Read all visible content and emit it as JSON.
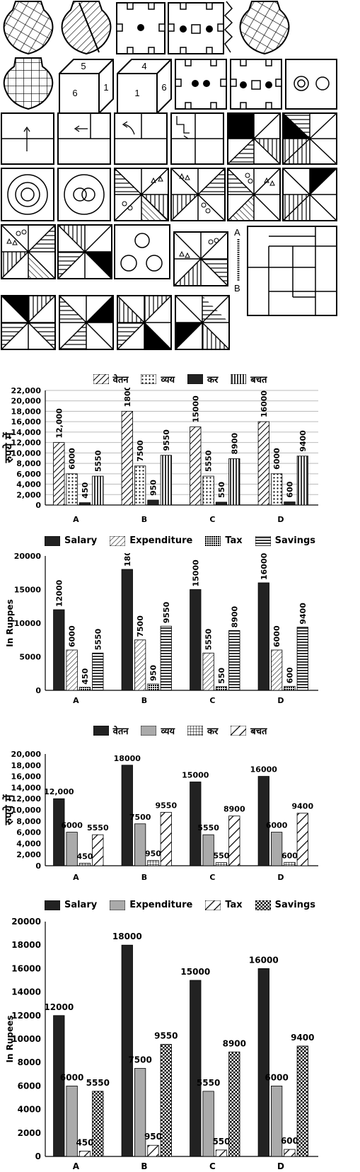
{
  "puzzle": {
    "labels": [
      "5",
      "1",
      "6",
      "4",
      "1",
      "6",
      "A",
      "B"
    ]
  },
  "chart_data": [
    {
      "type": "bar",
      "categories": [
        "A",
        "B",
        "C",
        "D"
      ],
      "ylabel": "रुपये में",
      "ylim": [
        0,
        22000
      ],
      "yticks": [
        "0",
        "2,000",
        "4,000",
        "6,000",
        "8,000",
        "10,000",
        "12,000",
        "14,000",
        "16,000",
        "18,000",
        "20,000",
        "22,000"
      ],
      "legend": "top",
      "grid": true,
      "series": [
        {
          "name": "वेतन",
          "values": [
            12000,
            18000,
            15000,
            16000
          ],
          "labels": [
            "12,000",
            "18000",
            "15000",
            "16000"
          ]
        },
        {
          "name": "व्यय",
          "values": [
            6000,
            7500,
            5550,
            6000
          ],
          "labels": [
            "6000",
            "7500",
            "5550",
            "6000"
          ]
        },
        {
          "name": "कर",
          "values": [
            450,
            950,
            550,
            600
          ],
          "labels": [
            "450",
            "950",
            "550",
            "600"
          ]
        },
        {
          "name": "बचत",
          "values": [
            5550,
            9550,
            8900,
            9400
          ],
          "labels": [
            "5550",
            "9550",
            "8900",
            "9400"
          ]
        }
      ]
    },
    {
      "type": "bar",
      "categories": [
        "A",
        "B",
        "C",
        "D"
      ],
      "ylabel": "In Ruppes",
      "ylim": [
        0,
        20000
      ],
      "yticks": [
        "0",
        "5000",
        "10000",
        "15000",
        "20000"
      ],
      "legend": "top",
      "grid": false,
      "series": [
        {
          "name": "Salary",
          "values": [
            12000,
            18000,
            15000,
            16000
          ],
          "labels": [
            "12000",
            "18000",
            "15000",
            "16000"
          ]
        },
        {
          "name": "Expenditure",
          "values": [
            6000,
            7500,
            5550,
            6000
          ],
          "labels": [
            "6000",
            "7500",
            "5550",
            "6000"
          ]
        },
        {
          "name": "Tax",
          "values": [
            450,
            950,
            550,
            600
          ],
          "labels": [
            "450",
            "950",
            "550",
            "600"
          ]
        },
        {
          "name": "Savings",
          "values": [
            5550,
            9550,
            8900,
            9400
          ],
          "labels": [
            "5550",
            "9550",
            "8900",
            "9400"
          ]
        }
      ]
    },
    {
      "type": "bar",
      "categories": [
        "A",
        "B",
        "C",
        "D"
      ],
      "ylabel": "रुपये में",
      "ylim": [
        0,
        20000
      ],
      "yticks": [
        "0",
        "2,000",
        "4,000",
        "6,000",
        "8,000",
        "10,000",
        "12,000",
        "14,000",
        "16,000",
        "18,000",
        "20,000"
      ],
      "legend": "top",
      "grid": false,
      "series": [
        {
          "name": "वेतन",
          "values": [
            12000,
            18000,
            15000,
            16000
          ],
          "labels": [
            "12,000",
            "18000",
            "15000",
            "16000"
          ]
        },
        {
          "name": "व्यय",
          "values": [
            6000,
            7500,
            5550,
            6000
          ],
          "labels": [
            "6000",
            "7500",
            "5550",
            "6000"
          ]
        },
        {
          "name": "कर",
          "values": [
            450,
            950,
            550,
            600
          ],
          "labels": [
            "450",
            "950",
            "550",
            "600"
          ]
        },
        {
          "name": "बचत",
          "values": [
            5550,
            9550,
            8900,
            9400
          ],
          "labels": [
            "5550",
            "9550",
            "8900",
            "9400"
          ]
        }
      ]
    },
    {
      "type": "bar",
      "categories": [
        "A",
        "B",
        "C",
        "D"
      ],
      "ylabel": "In Rupees",
      "ylim": [
        0,
        20000
      ],
      "yticks": [
        "0",
        "2000",
        "4000",
        "6000",
        "8000",
        "10000",
        "12000",
        "14000",
        "16000",
        "18000",
        "20000"
      ],
      "legend": "top",
      "grid": false,
      "series": [
        {
          "name": "Salary",
          "values": [
            12000,
            18000,
            15000,
            16000
          ],
          "labels": [
            "12000",
            "18000",
            "15000",
            "16000"
          ]
        },
        {
          "name": "Expenditure",
          "values": [
            6000,
            7500,
            5550,
            6000
          ],
          "labels": [
            "6000",
            "7500",
            "5550",
            "6000"
          ]
        },
        {
          "name": "Tax",
          "values": [
            450,
            950,
            550,
            600
          ],
          "labels": [
            "450",
            "950",
            "550",
            "600"
          ]
        },
        {
          "name": "Savings",
          "values": [
            5550,
            9550,
            8900,
            9400
          ],
          "labels": [
            "5550",
            "9550",
            "8900",
            "9400"
          ]
        }
      ]
    }
  ]
}
